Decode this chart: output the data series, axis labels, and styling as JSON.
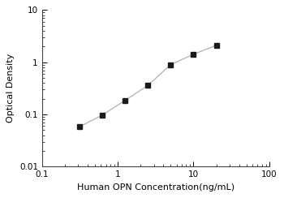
{
  "x_data": [
    0.313,
    0.625,
    1.25,
    2.5,
    5.0,
    10.0,
    20.0
  ],
  "y_data": [
    0.058,
    0.097,
    0.185,
    0.36,
    0.9,
    1.42,
    2.1
  ],
  "xlabel": "Human OPN Concentration(ng/mL)",
  "ylabel": "Optical Density",
  "xlim": [
    0.2,
    100
  ],
  "ylim": [
    0.01,
    10
  ],
  "x_ticks": [
    0.1,
    1,
    10,
    100
  ],
  "x_tick_labels": [
    "0.1",
    "1",
    "10",
    "100"
  ],
  "y_ticks": [
    0.01,
    0.1,
    1,
    10
  ],
  "y_tick_labels": [
    "0.01",
    "0.1",
    "1",
    "10"
  ],
  "line_color": "#b0b0b0",
  "marker_color": "#1a1a1a",
  "background_color": "#ffffff",
  "marker": "s",
  "marker_size": 4,
  "line_width": 0.9,
  "xlabel_fontsize": 8,
  "ylabel_fontsize": 8,
  "tick_fontsize": 7.5
}
